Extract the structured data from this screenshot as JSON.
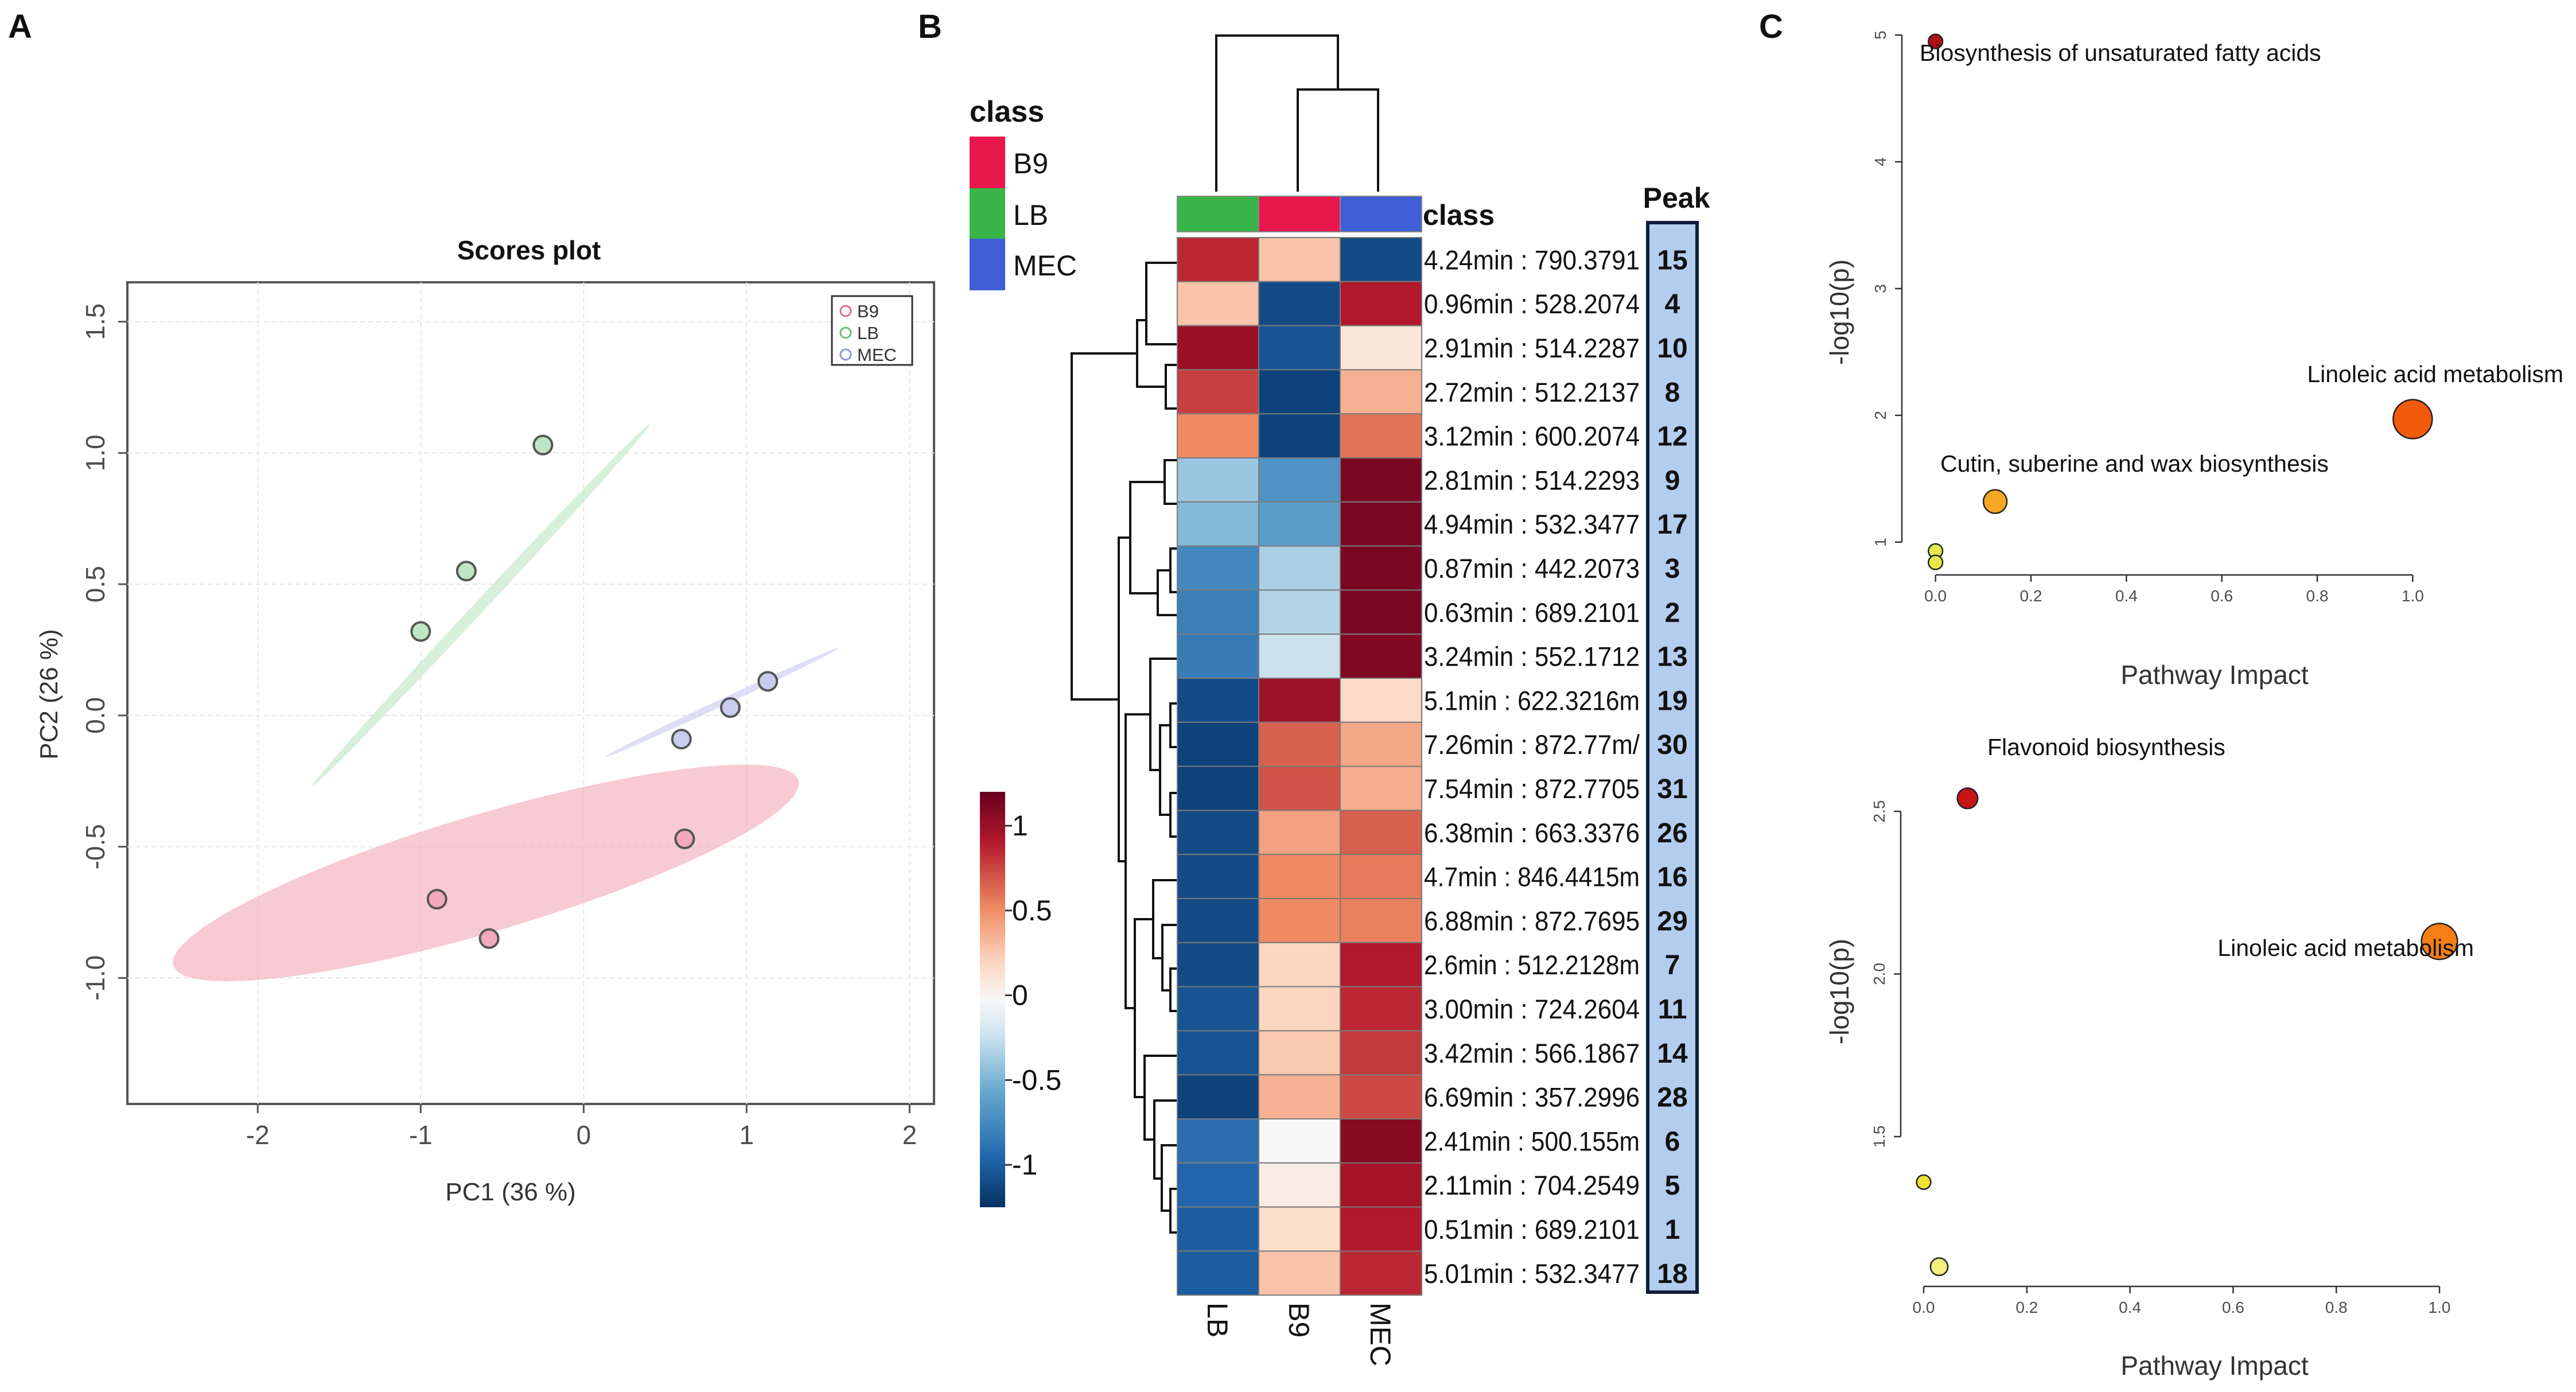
{
  "panel_labels": {
    "a": "A",
    "b": "B",
    "c": "C"
  },
  "chart_data": [
    {
      "type": "scatter",
      "panel": "A",
      "title": "Scores plot",
      "xlabel": "PC1 (36 %)",
      "ylabel": "PC2 (26 %)",
      "xlim": [
        -2.8,
        2.15
      ],
      "ylim": [
        -1.48,
        1.65
      ],
      "xticks": [
        -2,
        -1,
        0,
        1,
        2
      ],
      "yticks": [
        -1.0,
        -0.5,
        0.0,
        0.5,
        1.0,
        1.5
      ],
      "xtick_labels": [
        "-2",
        "-1",
        "0",
        "1",
        "2"
      ],
      "ytick_labels": [
        "-1.0",
        "-0.5",
        "0.0",
        "0.5",
        "1.0",
        "1.5"
      ],
      "grid": true,
      "legend_position": "top-right",
      "series": [
        {
          "name": "B9",
          "color": "#e0708a",
          "fill": "#f2a9b9",
          "points": [
            {
              "x": 0.62,
              "y": -0.47
            },
            {
              "x": -0.9,
              "y": -0.7
            },
            {
              "x": -0.58,
              "y": -0.85
            }
          ],
          "ellipse": {
            "cx": -0.6,
            "cy": -0.6,
            "major": 2.0,
            "minor": 0.36,
            "angle_deg": 16.5
          }
        },
        {
          "name": "LB",
          "color": "#6cbf78",
          "fill": "#bfe6c4",
          "points": [
            {
              "x": -0.25,
              "y": 1.03
            },
            {
              "x": -0.72,
              "y": 0.55
            },
            {
              "x": -1.0,
              "y": 0.32
            }
          ],
          "ellipse": {
            "cx": -0.63,
            "cy": 0.42,
            "major": 1.52,
            "minor": 0.035,
            "angle_deg": 47
          }
        },
        {
          "name": "MEC",
          "color": "#8e9ad6",
          "fill": "#c8cdee",
          "points": [
            {
              "x": 0.6,
              "y": -0.09
            },
            {
              "x": 0.9,
              "y": 0.03
            },
            {
              "x": 1.13,
              "y": 0.13
            }
          ],
          "ellipse": {
            "cx": 0.85,
            "cy": 0.05,
            "major": 0.79,
            "minor": 0.012,
            "angle_deg": 25
          }
        }
      ]
    },
    {
      "type": "heatmap",
      "panel": "B",
      "columns": [
        "LB",
        "B9",
        "MEC"
      ],
      "class_header": "class",
      "peak_header": "Peak",
      "legend_title": "class",
      "legend": [
        {
          "label": "B9",
          "color": "#e8174d"
        },
        {
          "label": "LB",
          "color": "#39b54a"
        },
        {
          "label": "MEC",
          "color": "#3f5fd6"
        }
      ],
      "column_classes": [
        "#39b54a",
        "#e8174d",
        "#3f5fd6"
      ],
      "colorbar": {
        "min": -1.25,
        "max": 1.2,
        "ticks": [
          1,
          0.5,
          0,
          -0.5,
          -1
        ],
        "tick_labels": [
          "1",
          "0.5",
          "0",
          "-0.5",
          "-1"
        ]
      },
      "rows": [
        {
          "label": "4.24min : 790.3791",
          "peak": "15",
          "values": [
            0.85,
            0.3,
            -1.1
          ]
        },
        {
          "label": "0.96min : 528.2074",
          "peak": "4",
          "values": [
            0.3,
            -1.1,
            0.9
          ]
        },
        {
          "label": "2.91min : 514.2287",
          "peak": "10",
          "values": [
            1.0,
            -1.05,
            0.12
          ]
        },
        {
          "label": "2.72min : 512.2137",
          "peak": "8",
          "values": [
            0.78,
            -1.15,
            0.38
          ]
        },
        {
          "label": "3.12min : 600.2074",
          "peak": "12",
          "values": [
            0.55,
            -1.15,
            0.62
          ]
        },
        {
          "label": "2.81min : 514.2293",
          "peak": "9",
          "values": [
            -0.38,
            -0.68,
            1.12
          ]
        },
        {
          "label": "4.94min : 532.3477",
          "peak": "17",
          "values": [
            -0.45,
            -0.62,
            1.12
          ]
        },
        {
          "label": "0.87min : 442.2073",
          "peak": "3",
          "values": [
            -0.75,
            -0.33,
            1.12
          ]
        },
        {
          "label": "0.63min : 689.2101",
          "peak": "2",
          "values": [
            -0.8,
            -0.3,
            1.12
          ]
        },
        {
          "label": "3.24min : 552.1712",
          "peak": "13",
          "values": [
            -0.82,
            -0.22,
            1.1
          ]
        },
        {
          "label": "5.1min : 622.3216m",
          "peak": "19",
          "values": [
            -1.1,
            0.98,
            0.2
          ]
        },
        {
          "label": "7.26min : 872.77m/",
          "peak": "30",
          "values": [
            -1.15,
            0.68,
            0.42
          ]
        },
        {
          "label": "7.54min : 872.7705",
          "peak": "31",
          "values": [
            -1.15,
            0.72,
            0.4
          ]
        },
        {
          "label": "6.38min : 663.3376",
          "peak": "26",
          "values": [
            -1.1,
            0.45,
            0.68
          ]
        },
        {
          "label": "4.7min : 846.4415m",
          "peak": "16",
          "values": [
            -1.1,
            0.55,
            0.6
          ]
        },
        {
          "label": "6.88min : 872.7695",
          "peak": "29",
          "values": [
            -1.1,
            0.55,
            0.58
          ]
        },
        {
          "label": "2.6min : 512.2128m",
          "peak": "7",
          "values": [
            -1.1,
            0.22,
            0.9
          ]
        },
        {
          "label": "3.00min : 724.2604",
          "peak": "11",
          "values": [
            -1.05,
            0.22,
            0.85
          ]
        },
        {
          "label": "3.42min : 566.1867",
          "peak": "14",
          "values": [
            -1.05,
            0.28,
            0.8
          ]
        },
        {
          "label": "6.69min : 357.2996",
          "peak": "28",
          "values": [
            -1.15,
            0.38,
            0.75
          ]
        },
        {
          "label": "2.41min : 500.155m",
          "peak": "6",
          "values": [
            -0.9,
            0.0,
            1.08
          ]
        },
        {
          "label": "2.11min : 704.2549",
          "peak": "5",
          "values": [
            -0.95,
            0.08,
            0.95
          ]
        },
        {
          "label": "0.51min : 689.2101",
          "peak": "1",
          "values": [
            -1.0,
            0.18,
            0.9
          ]
        },
        {
          "label": "5.01min : 532.3477",
          "peak": "18",
          "values": [
            -1.0,
            0.3,
            0.85
          ]
        }
      ]
    },
    {
      "type": "scatter",
      "panel": "C-top",
      "xlabel": "Pathway Impact",
      "ylabel": "-log10(p)",
      "xlim": [
        -0.02,
        1.02
      ],
      "ylim": [
        0.75,
        5.05
      ],
      "xticks": [
        0.0,
        0.2,
        0.4,
        0.6,
        0.8,
        1.0
      ],
      "xtick_labels": [
        "0.0",
        "0.2",
        "0.4",
        "0.6",
        "0.8",
        "1.0"
      ],
      "yticks": [
        1,
        2,
        3,
        4,
        5
      ],
      "ytick_labels": [
        "1",
        "2",
        "3",
        "4",
        "5"
      ],
      "points": [
        {
          "x": 0.0,
          "y": 4.95,
          "size": 1,
          "color": "#b01010",
          "label": "Biosynthesis of unsaturated fatty acids"
        },
        {
          "x": 1.0,
          "y": 1.97,
          "size": 5,
          "color": "#f25a0c",
          "label": "Linoleic acid metabolism"
        },
        {
          "x": 0.125,
          "y": 1.32,
          "size": 2.5,
          "color": "#f5a623",
          "label": "Cutin, suberine and wax biosynthesis"
        },
        {
          "x": 0.0,
          "y": 0.93,
          "size": 1,
          "color": "#e8e84a",
          "label": ""
        },
        {
          "x": 0.0,
          "y": 0.84,
          "size": 1,
          "color": "#e8e84a",
          "label": ""
        }
      ]
    },
    {
      "type": "scatter",
      "panel": "C-bottom",
      "xlabel": "Pathway Impact",
      "ylabel": "-log10(p)",
      "xlim": [
        -0.02,
        1.02
      ],
      "ylim": [
        1.05,
        2.62
      ],
      "xticks": [
        0.0,
        0.2,
        0.4,
        0.6,
        0.8,
        1.0
      ],
      "xtick_labels": [
        "0.0",
        "0.2",
        "0.4",
        "0.6",
        "0.8",
        "1.0"
      ],
      "yticks": [
        1.5,
        2.0,
        2.5
      ],
      "ytick_labels": [
        "1.5",
        "2.0",
        "2.5"
      ],
      "points": [
        {
          "x": 0.085,
          "y": 2.54,
          "size": 2,
          "color": "#c81414",
          "label": "Flavonoid biosynthesis"
        },
        {
          "x": 1.0,
          "y": 2.1,
          "size": 4.5,
          "color": "#f57f17",
          "label": "Linoleic acid metabolism"
        },
        {
          "x": 0.0,
          "y": 1.36,
          "size": 1,
          "color": "#f0e030",
          "label": ""
        },
        {
          "x": 0.03,
          "y": 1.1,
          "size": 1.5,
          "color": "#f5f07a",
          "label": ""
        }
      ]
    }
  ]
}
